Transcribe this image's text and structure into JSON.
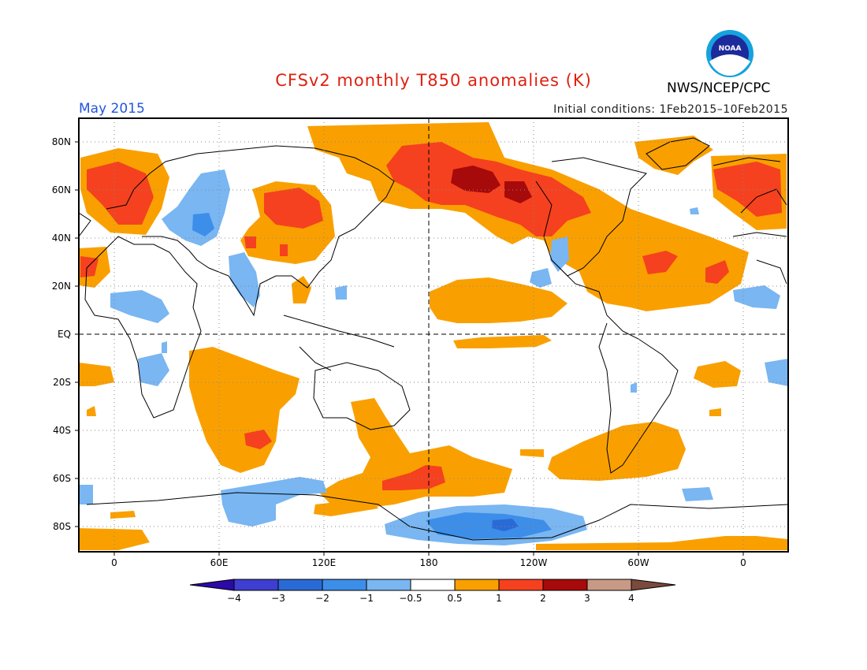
{
  "header": {
    "title": "CFSv2 monthly T850 anomalies (K)",
    "month": "May 2015",
    "initial_conditions": "Initial conditions: 1Feb2015–10Feb2015",
    "agency": "NWS/NCEP/CPC",
    "logo_text": "NOAA"
  },
  "axes": {
    "lat_labels": [
      "80N",
      "60N",
      "40N",
      "20N",
      "EQ",
      "20S",
      "40S",
      "60S",
      "80S"
    ],
    "lon_labels": [
      "0",
      "60E",
      "120E",
      "180",
      "120W",
      "60W",
      "0"
    ]
  },
  "colorbar": {
    "labels": [
      "−4",
      "−3",
      "−2",
      "−1",
      "−0.5",
      "0.5",
      "1",
      "2",
      "3",
      "4"
    ],
    "colors": [
      "#2b0aa8",
      "#3e3ed0",
      "#2a6ad6",
      "#3c8ee8",
      "#79b6f2",
      "#ffffff",
      "#f9a000",
      "#f5411f",
      "#a60a0a",
      "#c89a86",
      "#7a4a3c"
    ],
    "pos_colors": {
      "0.5": "#f9a000",
      "1": "#f5411f",
      "2": "#a60a0a"
    },
    "neg_colors": {
      "-0.5": "#79b6f2",
      "-1": "#3c8ee8",
      "-2": "#2a6ad6"
    }
  }
}
